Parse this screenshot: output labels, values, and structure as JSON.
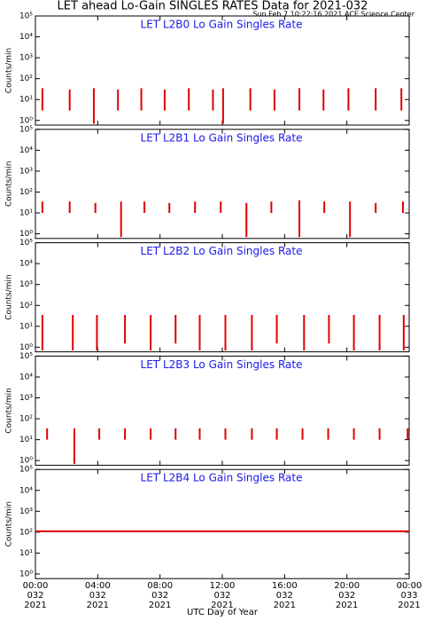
{
  "header": {
    "title": "LET ahead Lo-Gain SINGLES RATES Data for 2021-032",
    "timestamp": "Sun Feb  7 10:22:16 2021 ACE Science Center"
  },
  "chart_data": [
    {
      "type": "spike",
      "title": "LET L2B0 Lo Gain Singles Rate",
      "y_label": "Counts/min",
      "color": "#e00000",
      "log_y": true,
      "xlim": [
        0,
        24
      ],
      "ylim": [
        0.6,
        100000
      ],
      "yticks": [
        {
          "value": 1,
          "label": "10⁰"
        },
        {
          "value": 10,
          "label": "10¹"
        },
        {
          "value": 100,
          "label": "10²"
        },
        {
          "value": 1000,
          "label": "10³"
        },
        {
          "value": 10000,
          "label": "10⁴"
        },
        {
          "value": 100000,
          "label": "10⁵"
        }
      ],
      "x": [
        0.45,
        2.2,
        3.75,
        5.3,
        6.8,
        8.3,
        9.85,
        11.4,
        12.05,
        13.8,
        15.35,
        16.95,
        18.5,
        20.1,
        21.85,
        23.5
      ],
      "tops": [
        35,
        30,
        35,
        30,
        35,
        30,
        35,
        30,
        35,
        35,
        30,
        35,
        30,
        35,
        35,
        35
      ],
      "bottoms": [
        3,
        3,
        0.7,
        3,
        3,
        3,
        3,
        3,
        0.7,
        3,
        3,
        3,
        3,
        3,
        3,
        3
      ]
    },
    {
      "type": "spike",
      "title": "LET L2B1 Lo Gain Singles Rate",
      "y_label": "Counts/min",
      "color": "#e00000",
      "log_y": true,
      "xlim": [
        0,
        24
      ],
      "ylim": [
        0.6,
        100000
      ],
      "yticks": [
        {
          "value": 1,
          "label": "10⁰"
        },
        {
          "value": 10,
          "label": "10¹"
        },
        {
          "value": 100,
          "label": "10²"
        },
        {
          "value": 1000,
          "label": "10³"
        },
        {
          "value": 10000,
          "label": "10⁴"
        },
        {
          "value": 100000,
          "label": "10⁵"
        }
      ],
      "x": [
        0.45,
        2.2,
        3.85,
        5.5,
        7.0,
        8.6,
        10.25,
        11.9,
        13.55,
        15.15,
        16.95,
        18.55,
        20.2,
        21.85,
        23.6
      ],
      "tops": [
        35,
        35,
        30,
        35,
        35,
        30,
        35,
        35,
        30,
        35,
        40,
        35,
        35,
        30,
        35
      ],
      "bottoms": [
        10,
        10,
        10,
        0.7,
        10,
        10,
        10,
        10,
        0.7,
        10,
        0.7,
        10,
        0.7,
        10,
        10
      ]
    },
    {
      "type": "spike",
      "title": "LET L2B2 Lo Gain Singles Rate",
      "y_label": "Counts/min",
      "color": "#e00000",
      "log_y": true,
      "xlim": [
        0,
        24
      ],
      "ylim": [
        0.6,
        100000
      ],
      "yticks": [
        {
          "value": 1,
          "label": "10⁰"
        },
        {
          "value": 10,
          "label": "10¹"
        },
        {
          "value": 100,
          "label": "10²"
        },
        {
          "value": 1000,
          "label": "10³"
        },
        {
          "value": 10000,
          "label": "10⁴"
        },
        {
          "value": 100000,
          "label": "10⁵"
        }
      ],
      "x": [
        0.45,
        2.4,
        3.95,
        5.75,
        7.4,
        9.0,
        10.55,
        12.2,
        13.9,
        15.5,
        17.25,
        18.85,
        20.45,
        22.1,
        23.65
      ],
      "tops": [
        35,
        35,
        35,
        35,
        35,
        35,
        35,
        35,
        35,
        35,
        35,
        35,
        35,
        35,
        35
      ],
      "bottoms": [
        0.7,
        0.7,
        0.7,
        1.5,
        0.7,
        1.5,
        0.7,
        0.7,
        0.7,
        1.5,
        0.7,
        1.5,
        0.7,
        0.7,
        0.7
      ]
    },
    {
      "type": "spike",
      "title": "LET L2B3 Lo Gain Singles Rate",
      "y_label": "Counts/min",
      "color": "#e00000",
      "log_y": true,
      "xlim": [
        0,
        24
      ],
      "ylim": [
        0.6,
        100000
      ],
      "yticks": [
        {
          "value": 1,
          "label": "10⁰"
        },
        {
          "value": 10,
          "label": "10¹"
        },
        {
          "value": 100,
          "label": "10²"
        },
        {
          "value": 1000,
          "label": "10³"
        },
        {
          "value": 10000,
          "label": "10⁴"
        },
        {
          "value": 100000,
          "label": "10⁵"
        }
      ],
      "x": [
        0.75,
        2.5,
        4.1,
        5.75,
        7.4,
        9.0,
        10.55,
        12.2,
        13.9,
        15.5,
        17.15,
        18.8,
        20.45,
        22.1,
        23.9
      ],
      "tops": [
        35,
        35,
        35,
        35,
        35,
        35,
        35,
        35,
        35,
        35,
        35,
        35,
        35,
        35,
        35
      ],
      "bottoms": [
        10,
        0.7,
        10,
        10,
        10,
        10,
        10,
        10,
        10,
        10,
        10,
        10,
        10,
        10,
        10
      ]
    },
    {
      "type": "line",
      "title": "LET L2B4 Lo Gain Singles Rate",
      "y_label": "Counts/min",
      "x_label": "UTC Day of Year",
      "color": "#e00000",
      "log_y": true,
      "xlim": [
        0,
        24
      ],
      "ylim": [
        0.6,
        100000
      ],
      "yticks": [
        {
          "value": 1,
          "label": "10⁰"
        },
        {
          "value": 10,
          "label": "10¹"
        },
        {
          "value": 100,
          "label": "10²"
        },
        {
          "value": 1000,
          "label": "10³"
        },
        {
          "value": 10000,
          "label": "10⁴"
        },
        {
          "value": 100000,
          "label": "10⁵"
        }
      ],
      "xticks": [
        {
          "value": 0,
          "label": "00:00\n032\n2021"
        },
        {
          "value": 4,
          "label": "04:00\n032\n2021"
        },
        {
          "value": 8,
          "label": "08:00\n032\n2021"
        },
        {
          "value": 12,
          "label": "12:00\n032\n2021"
        },
        {
          "value": 16,
          "label": "16:00\n032\n2021"
        },
        {
          "value": 20,
          "label": "20:00\n032\n2021"
        },
        {
          "value": 24,
          "label": "00:00\n033\n2021"
        }
      ],
      "x": [
        0,
        2,
        4,
        6,
        8,
        10,
        12,
        14,
        16,
        18,
        20,
        22,
        24
      ],
      "values": [
        110,
        110,
        110,
        110,
        110,
        110,
        110,
        110,
        110,
        110,
        110,
        110,
        110
      ]
    }
  ]
}
